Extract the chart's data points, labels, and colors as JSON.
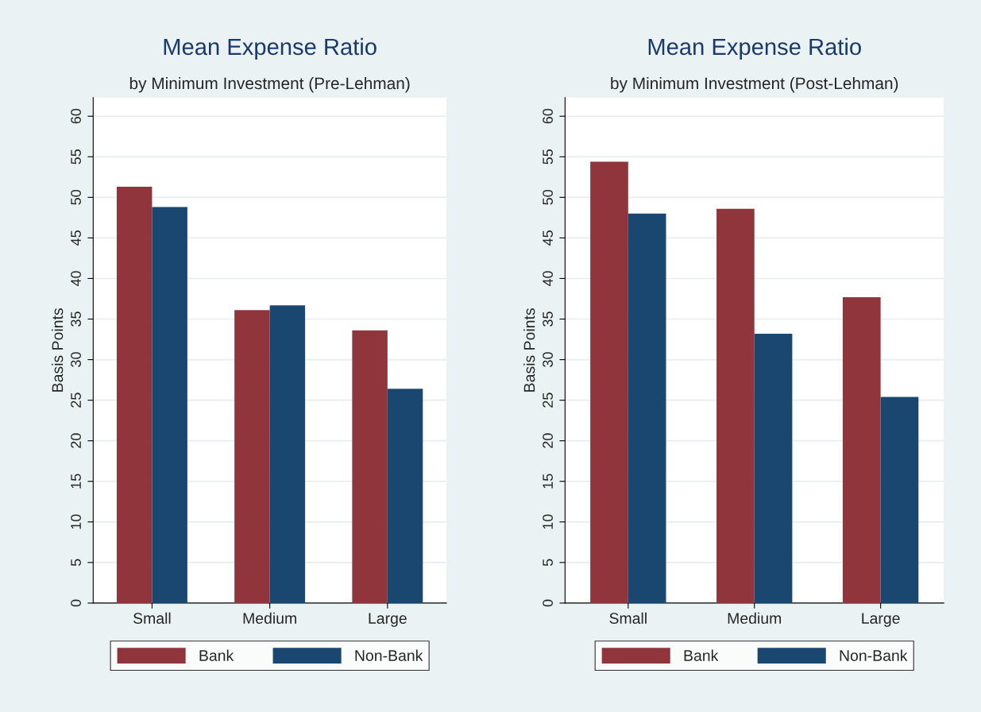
{
  "chart_data": [
    {
      "type": "bar",
      "title": "Mean Expense Ratio",
      "subtitle": "by Minimum Investment (Pre-Lehman)",
      "ylabel": "Basis Points",
      "categories": [
        "Small",
        "Medium",
        "Large"
      ],
      "series": [
        {
          "name": "Bank",
          "color": "#90353b",
          "values": [
            51.3,
            36.1,
            33.6
          ]
        },
        {
          "name": "Non-Bank",
          "color": "#1a476f",
          "values": [
            48.8,
            36.7,
            26.4
          ]
        }
      ],
      "ylim": [
        0,
        62.3
      ],
      "yticks": [
        0,
        5,
        10,
        15,
        20,
        25,
        30,
        35,
        40,
        45,
        50,
        55,
        60
      ],
      "grid": "y",
      "legend": "bottom"
    },
    {
      "type": "bar",
      "title": "Mean Expense Ratio",
      "subtitle": "by Minimum Investment (Post-Lehman)",
      "ylabel": "Basis Points",
      "categories": [
        "Small",
        "Medium",
        "Large"
      ],
      "series": [
        {
          "name": "Bank",
          "color": "#90353b",
          "values": [
            54.4,
            48.6,
            37.7
          ]
        },
        {
          "name": "Non-Bank",
          "color": "#1a476f",
          "values": [
            48.0,
            33.2,
            25.4
          ]
        }
      ],
      "ylim": [
        0,
        62.3
      ],
      "yticks": [
        0,
        5,
        10,
        15,
        20,
        25,
        30,
        35,
        40,
        45,
        50,
        55,
        60
      ],
      "grid": "y",
      "legend": "bottom"
    }
  ]
}
